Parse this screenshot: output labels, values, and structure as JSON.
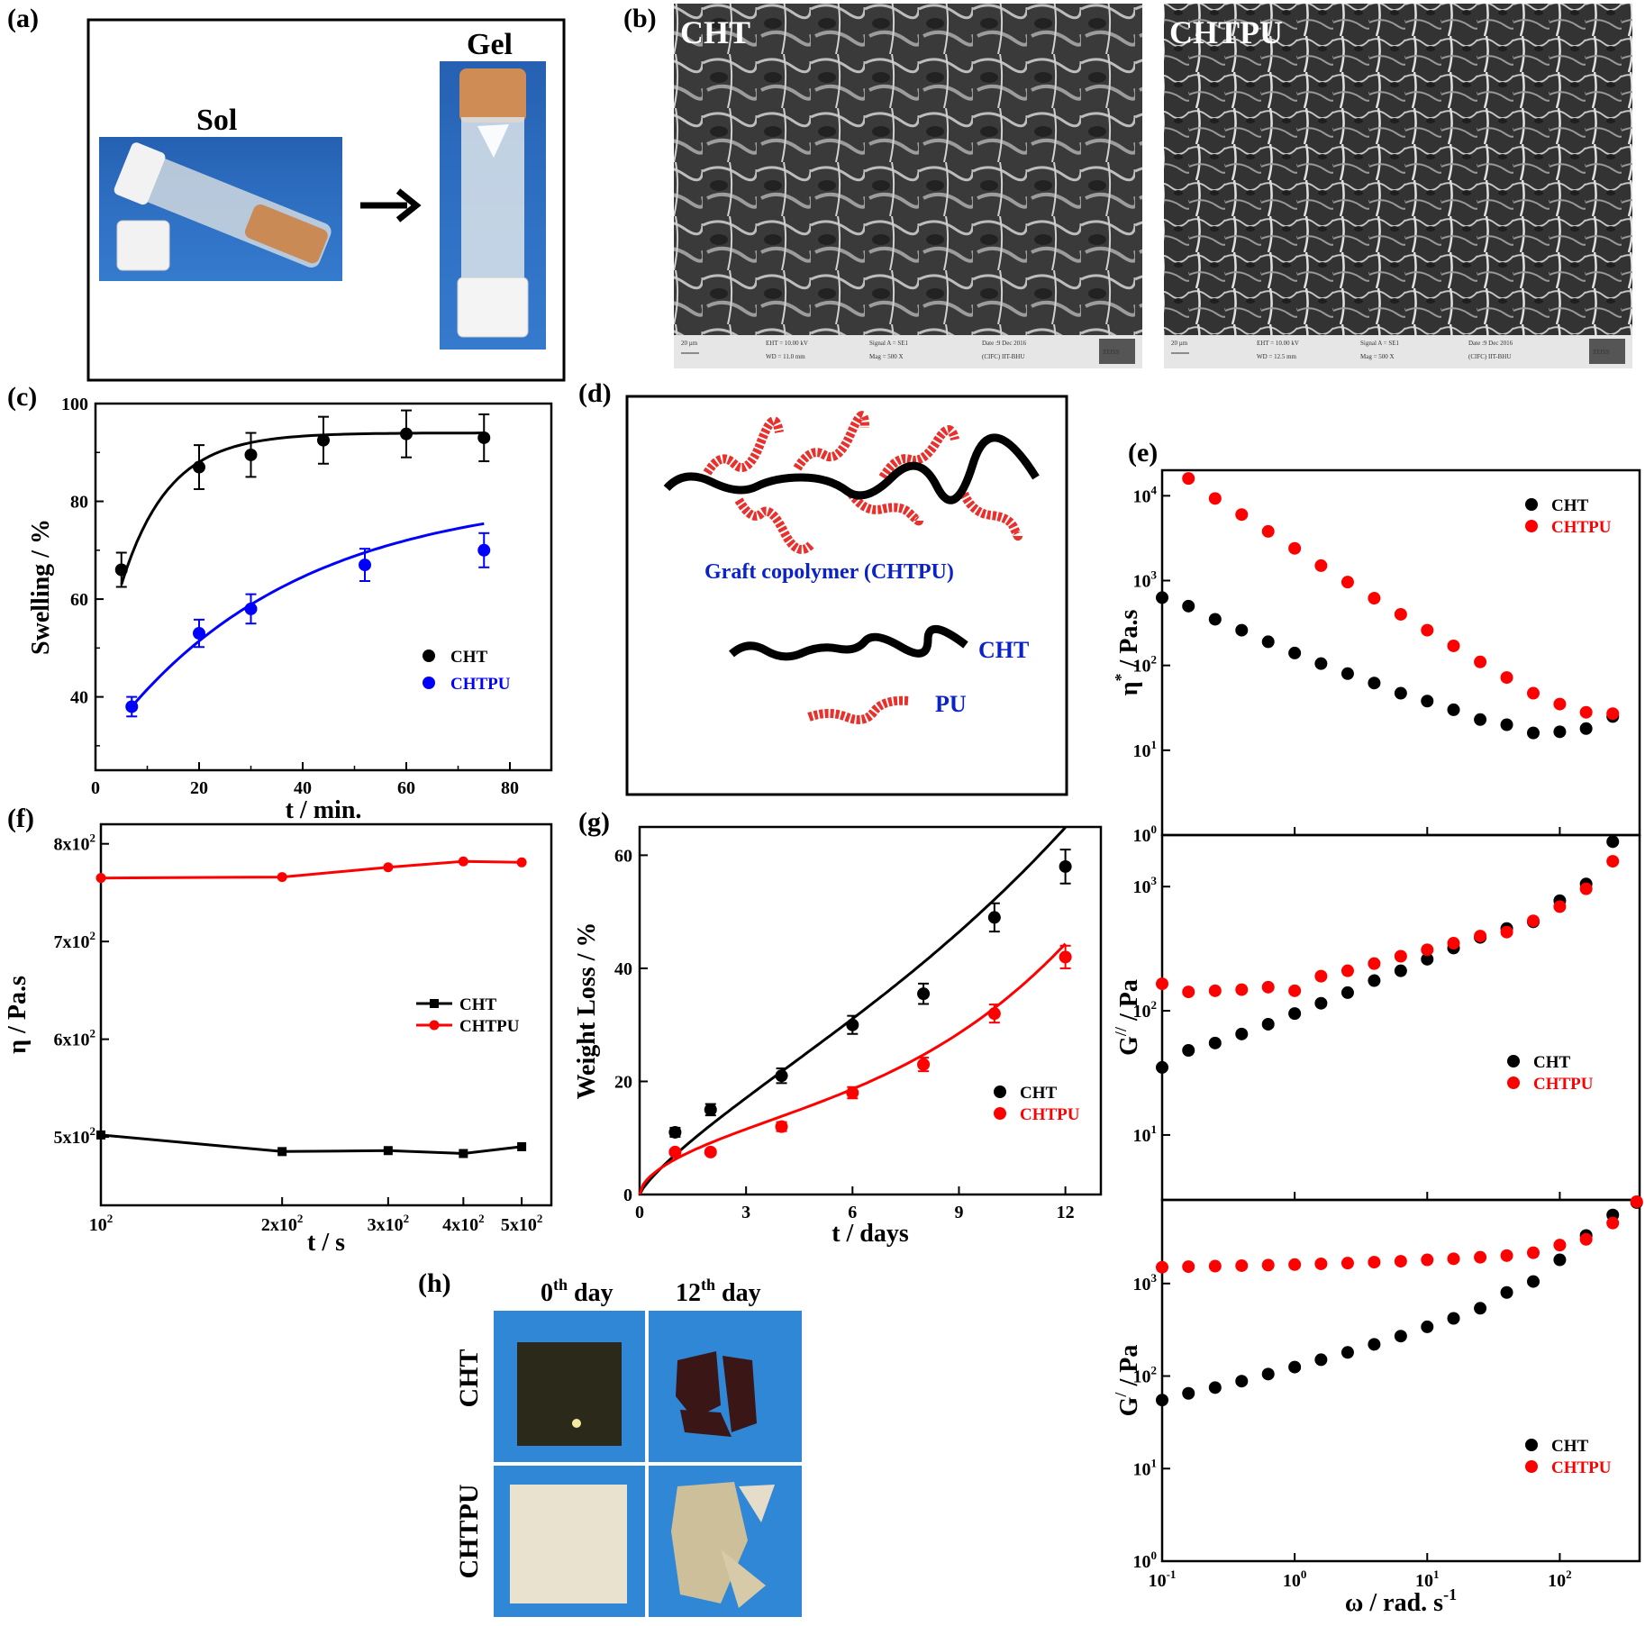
{
  "colors": {
    "cht": "#000000",
    "chtpu": "#ff0000",
    "chtpu_swelling": "#0000ff",
    "blue_text": "#0a22c8",
    "photo_blue": "#2f87d6",
    "pu_red": "#e8302c"
  },
  "panel_a": {
    "label": "(a)",
    "sol_label": "Sol",
    "gel_label": "Gel"
  },
  "panel_b": {
    "label": "(b)",
    "left_title": "CHT",
    "right_title": "CHTPU",
    "left_info": {
      "scale": "20 µm",
      "eht": "EHT = 10.00 kV",
      "wd": "WD = 11.0 mm",
      "signal": "Signal A = SE1",
      "mag": "Mag = 500 X",
      "date": "Date :9 Dec 2016",
      "lab": "(CIFC) IIT-BHU",
      "brand": "ZEISS"
    },
    "right_info": {
      "scale": "20 µm",
      "eht": "EHT = 10.00 kV",
      "wd": "WD = 12.5 mm",
      "signal": "Signal A = SE1",
      "mag": "Mag = 500 X",
      "date": "Date :9 Dec 2016",
      "lab": "(CIFC) IIT-BHU",
      "brand": "ZEISS"
    }
  },
  "panel_d": {
    "label": "(d)",
    "graft_label": "Graft copolymer (CHTPU)",
    "cht_label": "CHT",
    "pu_label": "PU"
  },
  "panel_h": {
    "label": "(h)",
    "col1_prefix": "0",
    "col1_sup": "th",
    "col1_suffix": " day",
    "col2_prefix": "12",
    "col2_sup": "th",
    "col2_suffix": " day",
    "row1": "CHT",
    "row2": "CHTPU"
  },
  "chart_data": [
    {
      "id": "c",
      "label": "(c)",
      "type": "scatter",
      "xlabel": "t / min.",
      "ylabel": "Swelling / %",
      "xlim": [
        0,
        88
      ],
      "ylim": [
        25,
        100
      ],
      "xticks": [
        0,
        20,
        40,
        60,
        80
      ],
      "yticks": [
        40,
        60,
        80,
        100
      ],
      "series": [
        {
          "name": "CHT",
          "color": "#000000",
          "x": [
            5,
            20,
            30,
            44,
            60,
            75
          ],
          "y": [
            66,
            87,
            89.5,
            92.5,
            93.8,
            93
          ],
          "err": [
            3.5,
            4.5,
            4.5,
            4.8,
            4.8,
            4.8
          ]
        },
        {
          "name": "CHTPU",
          "color": "#0000ff",
          "x": [
            7,
            20,
            30,
            52,
            75
          ],
          "y": [
            38,
            53,
            58,
            67,
            70
          ],
          "err": [
            2,
            2.8,
            3,
            3.3,
            3.5
          ]
        }
      ]
    },
    {
      "id": "f",
      "label": "(f)",
      "type": "line",
      "xlabel": "t / s",
      "ylabel": "η / Pa.s",
      "xscale": "log",
      "xlim": [
        100,
        560
      ],
      "ylim": [
        4.2,
        8.1
      ],
      "xticks": [
        {
          "v": 100,
          "b": "10",
          "e": "2"
        },
        {
          "v": 200,
          "b": "2x10",
          "e": "2"
        },
        {
          "v": 300,
          "b": "3x10",
          "e": "2"
        },
        {
          "v": 400,
          "b": "4x10",
          "e": "2"
        },
        {
          "v": 500,
          "b": "5x10",
          "e": "2"
        }
      ],
      "yticks": [
        {
          "v": 4.9,
          "b": "5x10",
          "e": "2"
        },
        {
          "v": 5.9,
          "b": "6x10",
          "e": "2"
        },
        {
          "v": 6.9,
          "b": "7x10",
          "e": "2"
        },
        {
          "v": 7.9,
          "b": "8x10",
          "e": "2"
        }
      ],
      "series": [
        {
          "name": "CHT",
          "color": "#000000",
          "marker": "square",
          "x": [
            100,
            200,
            300,
            400,
            500
          ],
          "y": [
            4.92,
            4.75,
            4.76,
            4.73,
            4.8
          ]
        },
        {
          "name": "CHTPU",
          "color": "#ff0000",
          "marker": "circle",
          "x": [
            100,
            200,
            300,
            400,
            500
          ],
          "y": [
            7.55,
            7.56,
            7.66,
            7.72,
            7.71
          ]
        }
      ]
    },
    {
      "id": "g",
      "label": "(g)",
      "type": "scatter",
      "xlabel": "t / days",
      "ylabel": "Weight  Loss / %",
      "xlim": [
        0,
        13
      ],
      "ylim": [
        0,
        65
      ],
      "xticks": [
        0,
        3,
        6,
        9,
        12
      ],
      "yticks": [
        0,
        20,
        40,
        60
      ],
      "series": [
        {
          "name": "CHT",
          "color": "#000000",
          "x": [
            1,
            2,
            4,
            6,
            8,
            10,
            12
          ],
          "y": [
            11,
            15,
            21,
            30,
            35.5,
            49,
            58
          ],
          "err": [
            0.8,
            1,
            1.3,
            1.6,
            1.8,
            2.5,
            3
          ]
        },
        {
          "name": "CHTPU",
          "color": "#ff0000",
          "x": [
            1,
            2,
            4,
            6,
            8,
            10,
            12
          ],
          "y": [
            7.5,
            7.5,
            12,
            18,
            23,
            32,
            42
          ],
          "err": [
            0.5,
            0.5,
            0.8,
            1,
            1.2,
            1.6,
            2
          ]
        }
      ]
    },
    {
      "id": "e1",
      "label": "(e)",
      "type": "scatter",
      "xscale": "log",
      "yscale": "log",
      "ylabel": "η* / Pa.s",
      "ylabel_main": "η",
      "ylabel_sup": "*",
      "ylabel_rest": "/ Pa.s",
      "xlim": [
        0.1,
        400
      ],
      "ylim": [
        1,
        20000
      ],
      "series": [
        {
          "name": "CHT",
          "color": "#000000",
          "x": [
            0.1,
            0.158,
            0.251,
            0.398,
            0.631,
            1,
            1.58,
            2.51,
            3.98,
            6.31,
            10,
            15.8,
            25.1,
            39.8,
            63.1,
            100,
            158,
            251
          ],
          "y": [
            630,
            500,
            350,
            260,
            190,
            140,
            105,
            80,
            62,
            47,
            38,
            30,
            23,
            20,
            16,
            16.5,
            18,
            25
          ]
        },
        {
          "name": "CHTPU",
          "color": "#ff0000",
          "x": [
            0.158,
            0.251,
            0.398,
            0.631,
            1,
            1.58,
            2.51,
            3.98,
            6.31,
            10,
            15.8,
            25.1,
            39.8,
            63.1,
            100,
            158,
            251
          ],
          "y": [
            16000,
            9300,
            6000,
            3800,
            2400,
            1500,
            960,
            620,
            400,
            260,
            170,
            110,
            72,
            47,
            35,
            28,
            27
          ]
        }
      ]
    },
    {
      "id": "e2",
      "type": "scatter",
      "xscale": "log",
      "yscale": "log",
      "ylabel": "G'' / Pa",
      "ylabel_main": "G",
      "ylabel_sup": "//",
      "ylabel_rest": "/ Pa",
      "xlim": [
        0.1,
        400
      ],
      "ylim": [
        3,
        2600
      ],
      "series": [
        {
          "name": "CHT",
          "color": "#000000",
          "x": [
            0.1,
            0.158,
            0.251,
            0.398,
            0.631,
            1,
            1.58,
            2.51,
            3.98,
            6.31,
            10,
            15.8,
            25.1,
            39.8,
            63.1,
            100,
            158,
            251
          ],
          "y": [
            35,
            48,
            55,
            65,
            78,
            95,
            115,
            140,
            175,
            210,
            260,
            320,
            390,
            460,
            520,
            770,
            1050,
            2300
          ]
        },
        {
          "name": "CHTPU",
          "color": "#ff0000",
          "x": [
            0.1,
            0.158,
            0.251,
            0.398,
            0.631,
            1,
            1.58,
            2.51,
            3.98,
            6.31,
            10,
            15.8,
            25.1,
            39.8,
            63.1,
            100,
            158,
            251
          ],
          "y": [
            165,
            142,
            145,
            148,
            155,
            145,
            190,
            210,
            240,
            275,
            310,
            350,
            400,
            430,
            530,
            690,
            960,
            1600
          ]
        }
      ]
    },
    {
      "id": "e3",
      "type": "scatter",
      "xscale": "log",
      "yscale": "log",
      "xlabel": "ω / rad. s-1",
      "xlabel_main": "ω / rad. s",
      "xlabel_sup": "-1",
      "ylabel": "G' / Pa",
      "ylabel_main": "G",
      "ylabel_sup": "/",
      "ylabel_rest": "/ Pa",
      "xlim": [
        0.1,
        400
      ],
      "ylim": [
        1,
        8000
      ],
      "xticks": [
        {
          "v": 0.1,
          "b": "10",
          "e": "-1"
        },
        {
          "v": 1,
          "b": "10",
          "e": "0"
        },
        {
          "v": 10,
          "b": "10",
          "e": "1"
        },
        {
          "v": 100,
          "b": "10",
          "e": "2"
        }
      ],
      "series": [
        {
          "name": "CHT",
          "color": "#000000",
          "x": [
            0.1,
            0.158,
            0.251,
            0.398,
            0.631,
            1,
            1.58,
            2.51,
            3.98,
            6.31,
            10,
            15.8,
            25.1,
            39.8,
            63.1,
            100,
            158,
            251,
            380
          ],
          "y": [
            55,
            65,
            75,
            88,
            105,
            125,
            150,
            180,
            220,
            270,
            340,
            420,
            540,
            800,
            1050,
            1800,
            3300,
            5500,
            7500
          ]
        },
        {
          "name": "CHTPU",
          "color": "#ff0000",
          "x": [
            0.1,
            0.158,
            0.251,
            0.398,
            0.631,
            1,
            1.58,
            2.51,
            3.98,
            6.31,
            10,
            15.8,
            25.1,
            39.8,
            63.1,
            100,
            158,
            251,
            380
          ],
          "y": [
            1500,
            1520,
            1540,
            1560,
            1580,
            1600,
            1630,
            1660,
            1700,
            1740,
            1800,
            1850,
            1920,
            2000,
            2150,
            2600,
            3000,
            4500,
            8000
          ]
        }
      ]
    }
  ],
  "tick_labels": {
    "e_top": [
      {
        "b": "10",
        "e": "4"
      },
      {
        "b": "10",
        "e": "3"
      },
      {
        "b": "10",
        "e": "2"
      },
      {
        "b": "10",
        "e": "1"
      },
      {
        "b": "10",
        "e": "0"
      }
    ],
    "e_mid": [
      {
        "b": "10",
        "e": "3"
      },
      {
        "b": "10",
        "e": "2"
      },
      {
        "b": "10",
        "e": "1"
      }
    ],
    "e_bot": [
      {
        "b": "10",
        "e": "3"
      },
      {
        "b": "10",
        "e": "2"
      },
      {
        "b": "10",
        "e": "1"
      },
      {
        "b": "10",
        "e": "0"
      }
    ]
  }
}
